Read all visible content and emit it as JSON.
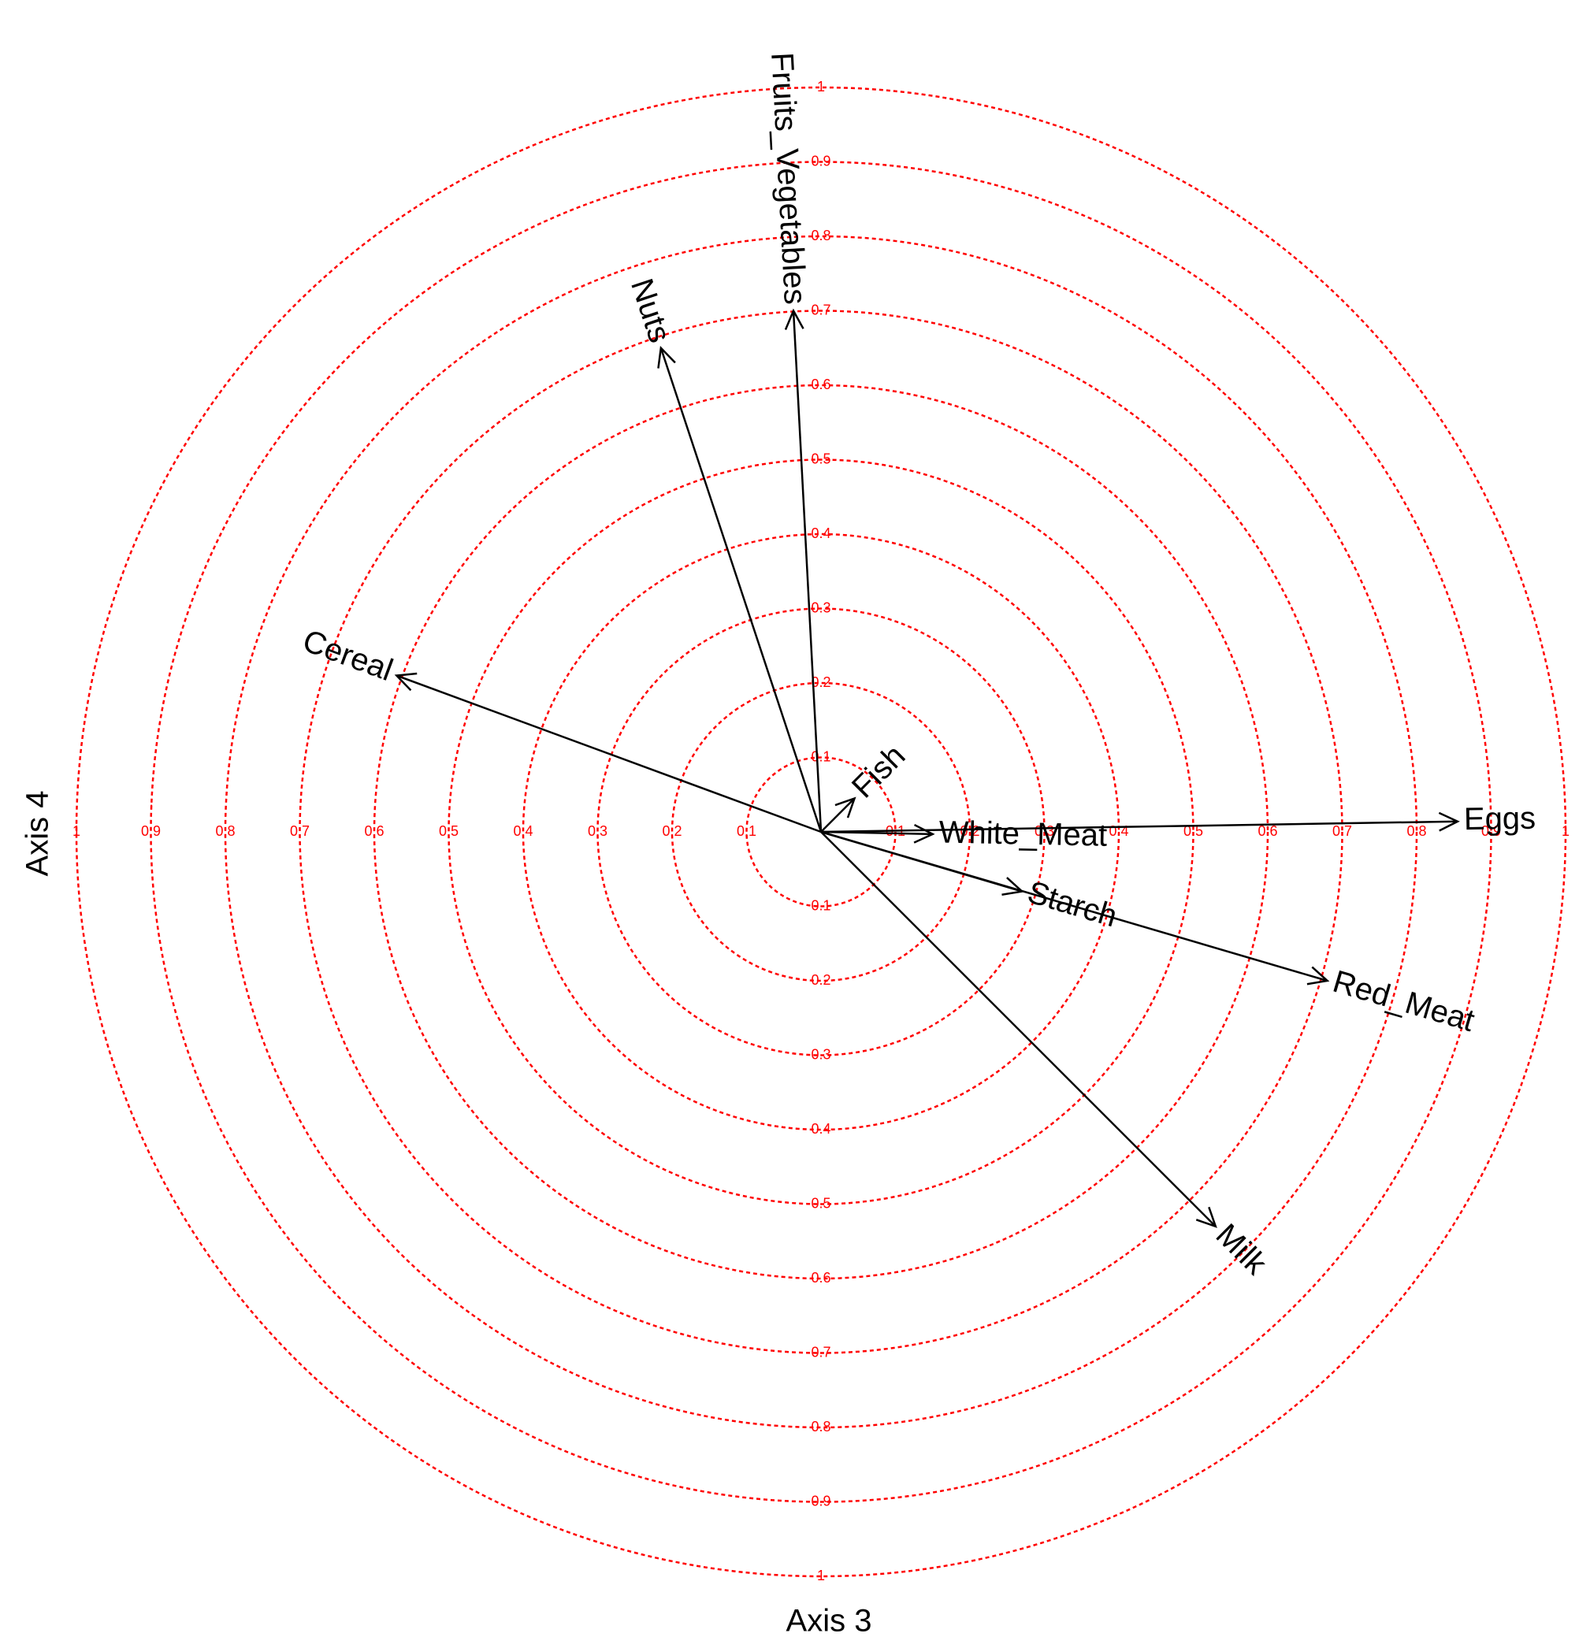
{
  "chart_data": {
    "type": "correlation-circle",
    "x_label": "Axis 3",
    "y_label": "Axis 4",
    "xlim": [
      -1,
      1
    ],
    "ylim": [
      -1,
      1
    ],
    "rings": [
      0.1,
      0.2,
      0.3,
      0.4,
      0.5,
      0.6,
      0.7,
      0.8,
      0.9,
      1
    ],
    "ring_color": "#ff0000",
    "arrow_color": "#000000",
    "variables": [
      "Eggs",
      "White_Meat",
      "Starch",
      "Red_Meat",
      "Milk",
      "Fish",
      "Cereal",
      "Nuts",
      "Fruits_Vegetables"
    ],
    "x": [
      0.855,
      0.15,
      0.27,
      0.68,
      0.53,
      0.045,
      -0.57,
      -0.215,
      -0.037
    ],
    "y": [
      0.014,
      -0.003,
      -0.08,
      -0.2,
      -0.53,
      0.045,
      0.21,
      0.65,
      0.7
    ]
  }
}
